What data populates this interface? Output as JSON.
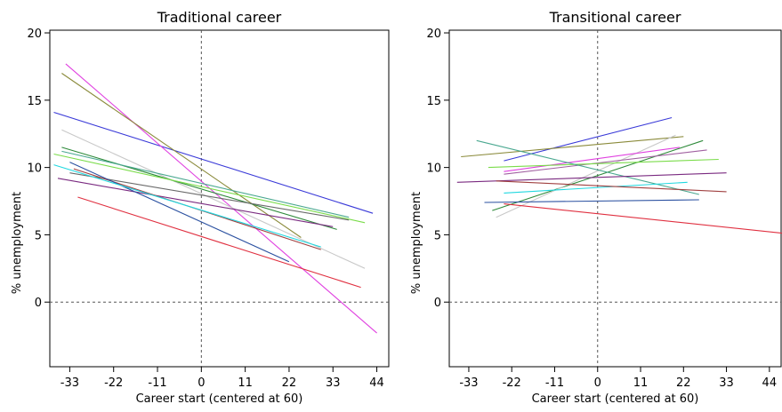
{
  "chart_data": [
    {
      "type": "line",
      "title": "Traditional career",
      "xlabel": "Career start (centered at 60)",
      "ylabel": "% unemployment",
      "xticks": [
        -33,
        -22,
        -11,
        0,
        11,
        22,
        33,
        44
      ],
      "yticks": [
        0,
        5,
        10,
        15,
        20
      ],
      "xlim": [
        -38,
        47
      ],
      "ylim": [
        -4.8,
        20.2
      ],
      "reference_lines": {
        "x": 0,
        "y": 0,
        "style": "dashed"
      },
      "grid": false,
      "series": [
        {
          "color": "#3a3ad8",
          "x": [
            -37,
            43
          ],
          "y": [
            14.1,
            6.6
          ]
        },
        {
          "color": "#e040e0",
          "x": [
            -34,
            44
          ],
          "y": [
            17.7,
            -2.3
          ]
        },
        {
          "color": "#8a8a3a",
          "x": [
            -35,
            25
          ],
          "y": [
            17.0,
            4.8
          ]
        },
        {
          "color": "#c8c8c8",
          "x": [
            -35,
            41
          ],
          "y": [
            12.8,
            2.5
          ]
        },
        {
          "color": "#2e8a3a",
          "x": [
            -35,
            34
          ],
          "y": [
            11.5,
            5.4
          ]
        },
        {
          "color": "#7adc4a",
          "x": [
            -37,
            41
          ],
          "y": [
            11.0,
            5.9
          ]
        },
        {
          "color": "#4aa890",
          "x": [
            -35,
            37
          ],
          "y": [
            11.2,
            6.3
          ]
        },
        {
          "color": "#6a6a6a",
          "x": [
            -33,
            37
          ],
          "y": [
            9.6,
            6.1
          ]
        },
        {
          "color": "#7a2a80",
          "x": [
            -36,
            33
          ],
          "y": [
            9.2,
            5.6
          ]
        },
        {
          "color": "#a04040",
          "x": [
            -32,
            30
          ],
          "y": [
            9.9,
            3.9
          ]
        },
        {
          "color": "#2a50a0",
          "x": [
            -33,
            22
          ],
          "y": [
            10.4,
            3.0
          ]
        },
        {
          "color": "#20d8e0",
          "x": [
            -37,
            30
          ],
          "y": [
            10.2,
            4.1
          ]
        },
        {
          "color": "#e03040",
          "x": [
            -31,
            40
          ],
          "y": [
            7.8,
            1.1
          ]
        }
      ]
    },
    {
      "type": "line",
      "title": "Transitional career",
      "xlabel": "Career start (centered at 60)",
      "ylabel": "% unemployment",
      "xticks": [
        -33,
        -22,
        -11,
        0,
        11,
        22,
        33,
        44
      ],
      "yticks": [
        0,
        5,
        10,
        15,
        20
      ],
      "xlim": [
        -38,
        47
      ],
      "ylim": [
        -4.8,
        20.2
      ],
      "reference_lines": {
        "x": 0,
        "y": 0,
        "style": "dashed"
      },
      "grid": false,
      "series": [
        {
          "color": "#3a3ad8",
          "x": [
            -24,
            19
          ],
          "y": [
            10.5,
            13.7
          ]
        },
        {
          "color": "#8a8a3a",
          "x": [
            -35,
            22
          ],
          "y": [
            10.8,
            12.3
          ]
        },
        {
          "color": "#2e8a3a",
          "x": [
            -27,
            27
          ],
          "y": [
            6.8,
            12.0
          ]
        },
        {
          "color": "#c8c8c8",
          "x": [
            -26,
            20
          ],
          "y": [
            6.3,
            12.4
          ]
        },
        {
          "color": "#e040e0",
          "x": [
            -24,
            21
          ],
          "y": [
            9.7,
            11.5
          ]
        },
        {
          "color": "#a060a0",
          "x": [
            -24,
            28
          ],
          "y": [
            9.5,
            11.3
          ]
        },
        {
          "color": "#7adc4a",
          "x": [
            -28,
            31
          ],
          "y": [
            10.0,
            10.6
          ]
        },
        {
          "color": "#4aa890",
          "x": [
            -31,
            26
          ],
          "y": [
            12.0,
            8.0
          ]
        },
        {
          "color": "#7a2a80",
          "x": [
            -36,
            33
          ],
          "y": [
            8.9,
            9.6
          ]
        },
        {
          "color": "#20d8e0",
          "x": [
            -24,
            23
          ],
          "y": [
            8.1,
            8.9
          ]
        },
        {
          "color": "#a04040",
          "x": [
            -26,
            33
          ],
          "y": [
            9.0,
            8.2
          ]
        },
        {
          "color": "#2a50a0",
          "x": [
            -29,
            26
          ],
          "y": [
            7.4,
            7.6
          ]
        },
        {
          "color": "#e03040",
          "x": [
            -24,
            48
          ],
          "y": [
            7.3,
            5.1
          ]
        }
      ]
    }
  ]
}
